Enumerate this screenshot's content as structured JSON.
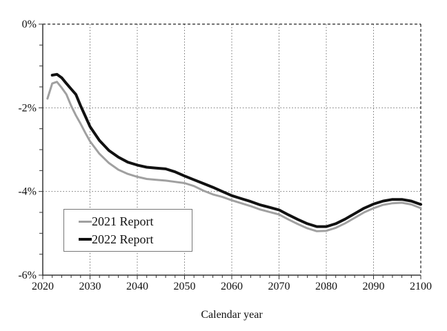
{
  "figure": {
    "x_axis_title": "Calendar year"
  },
  "chart_data": {
    "type": "line",
    "title": "",
    "xlabel": "Calendar year",
    "ylabel": "",
    "xlim": [
      2020,
      2100
    ],
    "ylim": [
      -6,
      0
    ],
    "x_major_ticks": [
      2020,
      2030,
      2040,
      2050,
      2060,
      2070,
      2080,
      2090,
      2100
    ],
    "x_tick_labels": [
      "2020",
      "2030",
      "2040",
      "2050",
      "2060",
      "2070",
      "2080",
      "2090",
      "2100"
    ],
    "x_minor_tick_step": 2,
    "y_major_ticks": [
      0,
      -2,
      -4,
      -6
    ],
    "y_tick_labels": [
      "0%",
      "-2%",
      "-4%",
      "-6%"
    ],
    "y_minor_tick_step": 0.5,
    "grid": {
      "vertical_at": [
        2030,
        2040,
        2050,
        2060,
        2070,
        2080,
        2090
      ],
      "horizontal_at": [
        -2,
        -4
      ],
      "style": "dotted",
      "color": "#787878",
      "border_dashed_color": "#222222"
    },
    "legend": {
      "position": "lower-left"
    },
    "series": [
      {
        "name": "2021 Report",
        "color": "#a0a0a0",
        "width": 3,
        "x": [
          2021,
          2022,
          2023,
          2024,
          2025,
          2026,
          2027,
          2028,
          2029,
          2030,
          2032,
          2034,
          2036,
          2038,
          2040,
          2042,
          2044,
          2046,
          2048,
          2050,
          2052,
          2054,
          2056,
          2058,
          2060,
          2062,
          2064,
          2066,
          2068,
          2070,
          2072,
          2074,
          2076,
          2078,
          2080,
          2082,
          2084,
          2086,
          2088,
          2090,
          2092,
          2094,
          2096,
          2098,
          2100
        ],
        "y": [
          -1.78,
          -1.42,
          -1.38,
          -1.52,
          -1.68,
          -1.95,
          -2.18,
          -2.38,
          -2.6,
          -2.8,
          -3.1,
          -3.32,
          -3.48,
          -3.58,
          -3.65,
          -3.7,
          -3.72,
          -3.74,
          -3.77,
          -3.8,
          -3.87,
          -3.98,
          -4.07,
          -4.13,
          -4.21,
          -4.28,
          -4.35,
          -4.43,
          -4.49,
          -4.55,
          -4.67,
          -4.78,
          -4.88,
          -4.95,
          -4.94,
          -4.87,
          -4.76,
          -4.63,
          -4.5,
          -4.4,
          -4.32,
          -4.28,
          -4.27,
          -4.31,
          -4.4
        ]
      },
      {
        "name": "2022 Report",
        "color": "#111111",
        "width": 4,
        "x": [
          2022,
          2023,
          2024,
          2025,
          2026,
          2027,
          2028,
          2029,
          2030,
          2032,
          2034,
          2036,
          2038,
          2040,
          2042,
          2044,
          2046,
          2048,
          2050,
          2052,
          2054,
          2056,
          2058,
          2060,
          2062,
          2064,
          2066,
          2068,
          2070,
          2072,
          2074,
          2076,
          2078,
          2080,
          2082,
          2084,
          2086,
          2088,
          2090,
          2092,
          2094,
          2096,
          2098,
          2100
        ],
        "y": [
          -1.22,
          -1.2,
          -1.28,
          -1.42,
          -1.55,
          -1.68,
          -1.95,
          -2.2,
          -2.45,
          -2.78,
          -3.02,
          -3.18,
          -3.3,
          -3.37,
          -3.42,
          -3.44,
          -3.46,
          -3.53,
          -3.63,
          -3.72,
          -3.81,
          -3.9,
          -4.0,
          -4.1,
          -4.17,
          -4.24,
          -4.32,
          -4.38,
          -4.44,
          -4.56,
          -4.67,
          -4.77,
          -4.84,
          -4.84,
          -4.77,
          -4.66,
          -4.53,
          -4.4,
          -4.3,
          -4.23,
          -4.19,
          -4.19,
          -4.23,
          -4.31
        ]
      }
    ]
  }
}
